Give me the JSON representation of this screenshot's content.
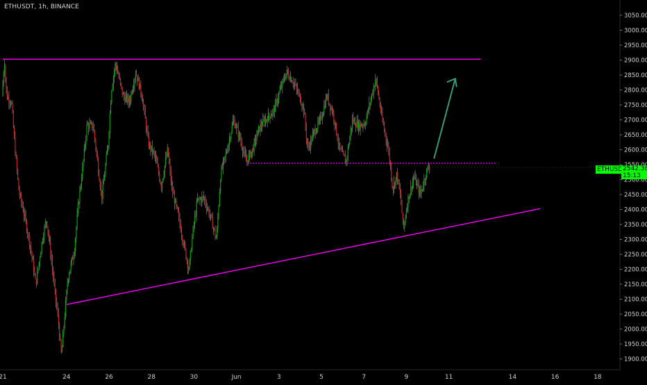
{
  "header": {
    "title": "ETHUSDT, 1h, BINANCE"
  },
  "price_tag": {
    "symbol": "ETHUSDT",
    "price": "2542.36",
    "countdown": "15:13"
  },
  "colors": {
    "background": "#000000",
    "up": "#00aa00",
    "down": "#cc2222",
    "wick": "#9a9a9a",
    "drawing": "#ff00ff",
    "arrow": "#3a9a7a",
    "tag": "#00ff00"
  },
  "chart_data": {
    "type": "candlestick",
    "symbol": "ETHUSDT",
    "interval": "1h",
    "exchange": "BINANCE",
    "y_ticks": [
      1900,
      1950,
      2000,
      2050,
      2100,
      2150,
      2200,
      2250,
      2300,
      2350,
      2400,
      2450,
      2500,
      2550,
      2600,
      2650,
      2700,
      2750,
      2800,
      2850,
      2900,
      2950,
      3000,
      3050
    ],
    "y_tick_labels": [
      "1900.00",
      "1950.00",
      "2000.00",
      "2050.00",
      "2100.00",
      "2150.00",
      "2200.00",
      "2250.00",
      "2300.00",
      "2350.00",
      "2400.00",
      "2450.00",
      "2500.00",
      "2550.00",
      "2600.00",
      "2650.00",
      "2700.00",
      "2750.00",
      "2800.00",
      "2850.00",
      "2900.00",
      "2950.00",
      "3000.00",
      "3050.00"
    ],
    "ylim": [
      1880,
      3085
    ],
    "x_ticks": [
      {
        "label": "21",
        "day": 0
      },
      {
        "label": "24",
        "day": 3
      },
      {
        "label": "26",
        "day": 5
      },
      {
        "label": "28",
        "day": 7
      },
      {
        "label": "30",
        "day": 9
      },
      {
        "label": "Jun",
        "day": 11
      },
      {
        "label": "3",
        "day": 13
      },
      {
        "label": "5",
        "day": 15
      },
      {
        "label": "7",
        "day": 17
      },
      {
        "label": "9",
        "day": 19
      },
      {
        "label": "11",
        "day": 21
      },
      {
        "label": "14",
        "day": 24
      },
      {
        "label": "16",
        "day": 26
      },
      {
        "label": "18",
        "day": 28
      }
    ],
    "price_path": [
      [
        0.0,
        2780
      ],
      [
        0.12,
        2900
      ],
      [
        0.22,
        2780
      ],
      [
        0.45,
        2760
      ],
      [
        0.62,
        2600
      ],
      [
        0.8,
        2460
      ],
      [
        1.0,
        2400
      ],
      [
        1.2,
        2330
      ],
      [
        1.4,
        2250
      ],
      [
        1.6,
        2150
      ],
      [
        1.9,
        2300
      ],
      [
        2.1,
        2370
      ],
      [
        2.3,
        2250
      ],
      [
        2.5,
        2120
      ],
      [
        2.65,
        2030
      ],
      [
        2.8,
        1910
      ],
      [
        2.95,
        2040
      ],
      [
        3.1,
        2170
      ],
      [
        3.4,
        2260
      ],
      [
        3.6,
        2420
      ],
      [
        3.8,
        2540
      ],
      [
        4.0,
        2680
      ],
      [
        4.3,
        2680
      ],
      [
        4.5,
        2560
      ],
      [
        4.7,
        2440
      ],
      [
        5.0,
        2620
      ],
      [
        5.15,
        2800
      ],
      [
        5.35,
        2890
      ],
      [
        5.7,
        2780
      ],
      [
        6.0,
        2760
      ],
      [
        6.3,
        2860
      ],
      [
        6.6,
        2780
      ],
      [
        6.9,
        2620
      ],
      [
        7.2,
        2580
      ],
      [
        7.5,
        2480
      ],
      [
        7.8,
        2600
      ],
      [
        8.0,
        2470
      ],
      [
        8.3,
        2380
      ],
      [
        8.6,
        2270
      ],
      [
        8.8,
        2200
      ],
      [
        9.0,
        2330
      ],
      [
        9.2,
        2430
      ],
      [
        9.5,
        2440
      ],
      [
        9.8,
        2380
      ],
      [
        10.1,
        2300
      ],
      [
        10.3,
        2520
      ],
      [
        10.6,
        2600
      ],
      [
        10.9,
        2700
      ],
      [
        11.2,
        2640
      ],
      [
        11.5,
        2560
      ],
      [
        11.8,
        2600
      ],
      [
        12.1,
        2670
      ],
      [
        12.4,
        2700
      ],
      [
        12.8,
        2730
      ],
      [
        13.1,
        2800
      ],
      [
        13.4,
        2860
      ],
      [
        13.7,
        2830
      ],
      [
        14.0,
        2780
      ],
      [
        14.2,
        2740
      ],
      [
        14.4,
        2600
      ],
      [
        14.7,
        2660
      ],
      [
        15.0,
        2700
      ],
      [
        15.3,
        2780
      ],
      [
        15.6,
        2720
      ],
      [
        15.9,
        2600
      ],
      [
        16.2,
        2560
      ],
      [
        16.5,
        2700
      ],
      [
        16.8,
        2680
      ],
      [
        17.1,
        2690
      ],
      [
        17.4,
        2780
      ],
      [
        17.6,
        2840
      ],
      [
        17.9,
        2700
      ],
      [
        18.2,
        2600
      ],
      [
        18.4,
        2470
      ],
      [
        18.6,
        2520
      ],
      [
        18.8,
        2420
      ],
      [
        18.9,
        2330
      ],
      [
        19.1,
        2430
      ],
      [
        19.4,
        2510
      ],
      [
        19.7,
        2450
      ],
      [
        20.0,
        2530
      ],
      [
        20.1,
        2542
      ]
    ],
    "drawings": {
      "resistance": {
        "from": {
          "day": 0,
          "price": 2903
        },
        "to": {
          "day": 22.5,
          "price": 2903
        }
      },
      "support_trend": {
        "from": {
          "day": 3,
          "price": 2082
        },
        "to": {
          "day": 25.3,
          "price": 2403
        }
      },
      "neckline_dotted": {
        "from": {
          "day": 11.5,
          "price": 2555
        },
        "to": {
          "day": 23.2,
          "price": 2555
        }
      },
      "arrow": {
        "from": {
          "day": 20.3,
          "price": 2570
        },
        "to": {
          "day": 21.3,
          "price": 2838
        }
      }
    },
    "last_price": 2542.36
  }
}
